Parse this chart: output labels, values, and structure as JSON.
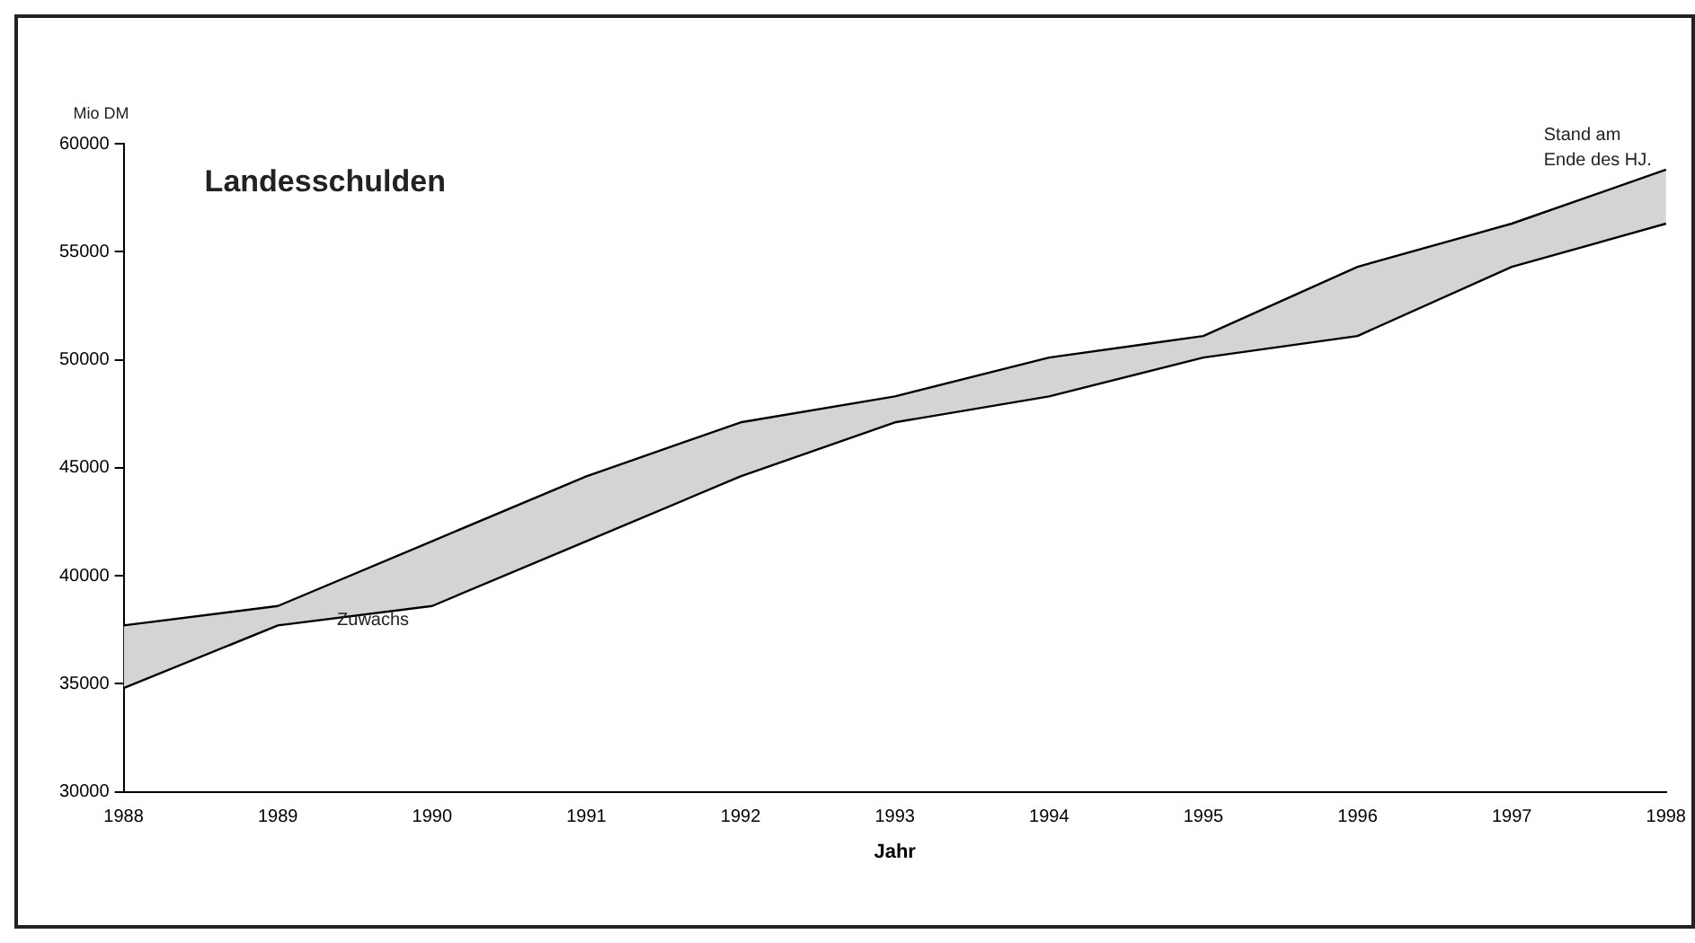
{
  "chart_data": {
    "type": "line",
    "title": "Landesschulden",
    "xlabel": "Jahr",
    "ylabel": "Mio DM",
    "categories": [
      "1988",
      "1989",
      "1990",
      "1991",
      "1992",
      "1993",
      "1994",
      "1995",
      "1996",
      "1997",
      "1998"
    ],
    "series": [
      {
        "type": "line",
        "color": "#000000",
        "values": [
          34800,
          37700,
          38600,
          41600,
          44600,
          47100,
          48300,
          50100,
          51100,
          54300,
          56300
        ]
      },
      {
        "type": "area",
        "color": "#d4d4d4",
        "values": [
          37700,
          38600,
          41600,
          44600,
          47100,
          48300,
          50100,
          51100,
          54300,
          56300,
          58800
        ]
      }
    ],
    "annotations": [
      "Zuwachs",
      "Stand am Ende des HJ."
    ],
    "ylim": [
      30000,
      60000
    ],
    "yticks": [
      30000,
      35000,
      40000,
      45000,
      50000,
      55000,
      60000
    ],
    "grid": false,
    "legend": false,
    "marker": "none"
  }
}
